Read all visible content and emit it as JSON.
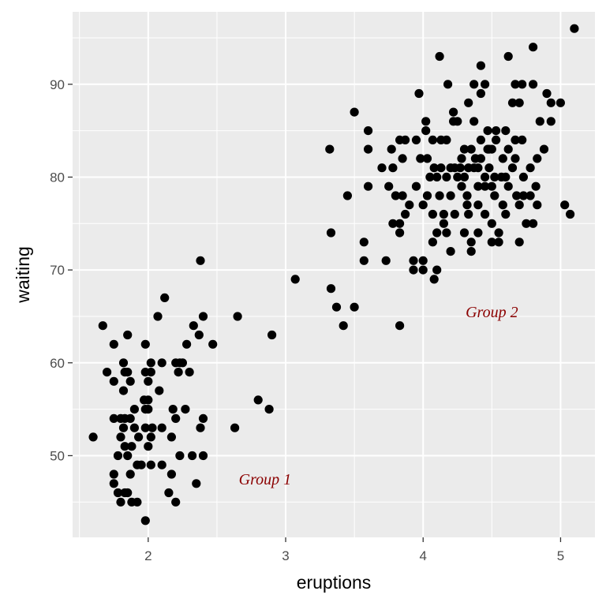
{
  "chart_data": {
    "type": "scatter",
    "title": "",
    "xlabel": "eruptions",
    "ylabel": "waiting",
    "xlim": [
      1.45,
      5.25
    ],
    "ylim": [
      41.2,
      97.8
    ],
    "x_ticks": [
      2,
      3,
      4,
      5
    ],
    "y_ticks": [
      50,
      60,
      70,
      80,
      90
    ],
    "x_tick_labels": [
      "2",
      "3",
      "4",
      "5"
    ],
    "y_tick_labels": [
      "50",
      "60",
      "70",
      "80",
      "90"
    ],
    "grid": true,
    "legend": "none",
    "colors": {
      "panel": "#ebebeb",
      "grid": "#ffffff",
      "point": "#000000",
      "annotation": "#8b0000"
    },
    "annotations": [
      {
        "text": "Group 1",
        "x": 2.85,
        "y": 47.5
      },
      {
        "text": "Group 2",
        "x": 4.5,
        "y": 65.5
      }
    ],
    "series": [
      {
        "points": [
          [
            1.6,
            52
          ],
          [
            1.67,
            64
          ],
          [
            1.7,
            59
          ],
          [
            1.75,
            54
          ],
          [
            1.75,
            62
          ],
          [
            1.75,
            58
          ],
          [
            1.75,
            48
          ],
          [
            1.75,
            47
          ],
          [
            1.78,
            50
          ],
          [
            1.78,
            46
          ],
          [
            1.8,
            54
          ],
          [
            1.8,
            52
          ],
          [
            1.8,
            45
          ],
          [
            1.82,
            53
          ],
          [
            1.82,
            60
          ],
          [
            1.82,
            57
          ],
          [
            1.83,
            59
          ],
          [
            1.83,
            54
          ],
          [
            1.83,
            51
          ],
          [
            1.83,
            46
          ],
          [
            1.85,
            63
          ],
          [
            1.85,
            59
          ],
          [
            1.85,
            50
          ],
          [
            1.85,
            46
          ],
          [
            1.87,
            58
          ],
          [
            1.87,
            54
          ],
          [
            1.87,
            48
          ],
          [
            1.88,
            45
          ],
          [
            1.88,
            51
          ],
          [
            1.9,
            53
          ],
          [
            1.9,
            55
          ],
          [
            1.92,
            45
          ],
          [
            1.92,
            49
          ],
          [
            1.93,
            52
          ],
          [
            1.95,
            49
          ],
          [
            1.97,
            56
          ],
          [
            1.98,
            55
          ],
          [
            1.98,
            53
          ],
          [
            1.98,
            62
          ],
          [
            1.98,
            59
          ],
          [
            1.98,
            43
          ],
          [
            2.0,
            51
          ],
          [
            2.0,
            55
          ],
          [
            2.0,
            56
          ],
          [
            2.0,
            58
          ],
          [
            2.02,
            59
          ],
          [
            2.02,
            60
          ],
          [
            2.02,
            52
          ],
          [
            2.02,
            49
          ],
          [
            2.03,
            53
          ],
          [
            2.07,
            65
          ],
          [
            2.08,
            57
          ],
          [
            2.1,
            60
          ],
          [
            2.1,
            53
          ],
          [
            2.1,
            49
          ],
          [
            2.12,
            67
          ],
          [
            2.15,
            46
          ],
          [
            2.17,
            52
          ],
          [
            2.17,
            48
          ],
          [
            2.18,
            55
          ],
          [
            2.2,
            45
          ],
          [
            2.2,
            54
          ],
          [
            2.2,
            60
          ],
          [
            2.22,
            59
          ],
          [
            2.23,
            60
          ],
          [
            2.23,
            50
          ],
          [
            2.25,
            60
          ],
          [
            2.27,
            55
          ],
          [
            2.28,
            62
          ],
          [
            2.3,
            59
          ],
          [
            2.32,
            50
          ],
          [
            2.33,
            64
          ],
          [
            2.35,
            47
          ],
          [
            2.37,
            63
          ],
          [
            2.38,
            71
          ],
          [
            2.38,
            53
          ],
          [
            2.4,
            65
          ],
          [
            2.4,
            54
          ],
          [
            2.4,
            50
          ],
          [
            2.47,
            62
          ],
          [
            2.63,
            53
          ],
          [
            2.65,
            65
          ],
          [
            2.8,
            56
          ],
          [
            2.88,
            55
          ],
          [
            2.9,
            63
          ],
          [
            3.07,
            69
          ],
          [
            3.32,
            83
          ],
          [
            3.33,
            74
          ],
          [
            3.33,
            68
          ],
          [
            3.37,
            66
          ],
          [
            3.42,
            64
          ],
          [
            3.45,
            78
          ],
          [
            3.5,
            66
          ],
          [
            3.5,
            87
          ],
          [
            3.57,
            73
          ],
          [
            3.57,
            71
          ],
          [
            3.6,
            85
          ],
          [
            3.6,
            83
          ],
          [
            3.6,
            79
          ],
          [
            3.7,
            81
          ],
          [
            3.73,
            71
          ],
          [
            3.75,
            79
          ],
          [
            3.77,
            83
          ],
          [
            3.78,
            81
          ],
          [
            3.78,
            75
          ],
          [
            3.8,
            78
          ],
          [
            3.83,
            74
          ],
          [
            3.83,
            64
          ],
          [
            3.83,
            75
          ],
          [
            3.83,
            84
          ],
          [
            3.85,
            78
          ],
          [
            3.85,
            82
          ],
          [
            3.87,
            84
          ],
          [
            3.87,
            76
          ],
          [
            3.9,
            77
          ],
          [
            3.93,
            71
          ],
          [
            3.93,
            70
          ],
          [
            3.95,
            79
          ],
          [
            3.95,
            84
          ],
          [
            3.97,
            89
          ],
          [
            3.98,
            82
          ],
          [
            4.0,
            77
          ],
          [
            4.0,
            71
          ],
          [
            4.0,
            70
          ],
          [
            4.02,
            86
          ],
          [
            4.02,
            85
          ],
          [
            4.03,
            78
          ],
          [
            4.03,
            82
          ],
          [
            4.05,
            80
          ],
          [
            4.07,
            84
          ],
          [
            4.07,
            73
          ],
          [
            4.07,
            76
          ],
          [
            4.08,
            81
          ],
          [
            4.08,
            69
          ],
          [
            4.1,
            74
          ],
          [
            4.1,
            80
          ],
          [
            4.1,
            70
          ],
          [
            4.12,
            93
          ],
          [
            4.12,
            78
          ],
          [
            4.13,
            81
          ],
          [
            4.13,
            84
          ],
          [
            4.15,
            76
          ],
          [
            4.15,
            75
          ],
          [
            4.17,
            84
          ],
          [
            4.17,
            80
          ],
          [
            4.17,
            74
          ],
          [
            4.18,
            90
          ],
          [
            4.2,
            78
          ],
          [
            4.2,
            81
          ],
          [
            4.2,
            72
          ],
          [
            4.22,
            87
          ],
          [
            4.22,
            86
          ],
          [
            4.23,
            81
          ],
          [
            4.23,
            76
          ],
          [
            4.25,
            80
          ],
          [
            4.25,
            86
          ],
          [
            4.27,
            81
          ],
          [
            4.28,
            79
          ],
          [
            4.28,
            82
          ],
          [
            4.3,
            74
          ],
          [
            4.3,
            83
          ],
          [
            4.3,
            80
          ],
          [
            4.32,
            77
          ],
          [
            4.32,
            78
          ],
          [
            4.33,
            76
          ],
          [
            4.33,
            81
          ],
          [
            4.33,
            88
          ],
          [
            4.35,
            72
          ],
          [
            4.35,
            83
          ],
          [
            4.35,
            73
          ],
          [
            4.37,
            81
          ],
          [
            4.37,
            90
          ],
          [
            4.37,
            86
          ],
          [
            4.38,
            82
          ],
          [
            4.4,
            79
          ],
          [
            4.4,
            77
          ],
          [
            4.4,
            81
          ],
          [
            4.4,
            74
          ],
          [
            4.42,
            89
          ],
          [
            4.42,
            82
          ],
          [
            4.42,
            92
          ],
          [
            4.42,
            84
          ],
          [
            4.45,
            80
          ],
          [
            4.45,
            79
          ],
          [
            4.45,
            76
          ],
          [
            4.45,
            90
          ],
          [
            4.47,
            83
          ],
          [
            4.47,
            85
          ],
          [
            4.48,
            83
          ],
          [
            4.48,
            81
          ],
          [
            4.5,
            79
          ],
          [
            4.5,
            83
          ],
          [
            4.5,
            75
          ],
          [
            4.5,
            73
          ],
          [
            4.52,
            78
          ],
          [
            4.52,
            80
          ],
          [
            4.53,
            84
          ],
          [
            4.53,
            85
          ],
          [
            4.55,
            74
          ],
          [
            4.55,
            73
          ],
          [
            4.57,
            80
          ],
          [
            4.58,
            82
          ],
          [
            4.58,
            77
          ],
          [
            4.6,
            85
          ],
          [
            4.6,
            80
          ],
          [
            4.6,
            76
          ],
          [
            4.62,
            83
          ],
          [
            4.62,
            79
          ],
          [
            4.62,
            93
          ],
          [
            4.65,
            81
          ],
          [
            4.65,
            88
          ],
          [
            4.67,
            90
          ],
          [
            4.67,
            84
          ],
          [
            4.67,
            82
          ],
          [
            4.68,
            78
          ],
          [
            4.7,
            77
          ],
          [
            4.7,
            73
          ],
          [
            4.7,
            88
          ],
          [
            4.72,
            84
          ],
          [
            4.72,
            90
          ],
          [
            4.73,
            78
          ],
          [
            4.73,
            80
          ],
          [
            4.75,
            75
          ],
          [
            4.78,
            81
          ],
          [
            4.78,
            78
          ],
          [
            4.8,
            90
          ],
          [
            4.8,
            75
          ],
          [
            4.8,
            94
          ],
          [
            4.82,
            79
          ],
          [
            4.83,
            77
          ],
          [
            4.83,
            82
          ],
          [
            4.85,
            86
          ],
          [
            4.88,
            83
          ],
          [
            4.9,
            89
          ],
          [
            4.93,
            86
          ],
          [
            4.93,
            88
          ],
          [
            5.0,
            88
          ],
          [
            5.03,
            77
          ],
          [
            5.07,
            76
          ],
          [
            5.1,
            96
          ]
        ]
      }
    ]
  }
}
